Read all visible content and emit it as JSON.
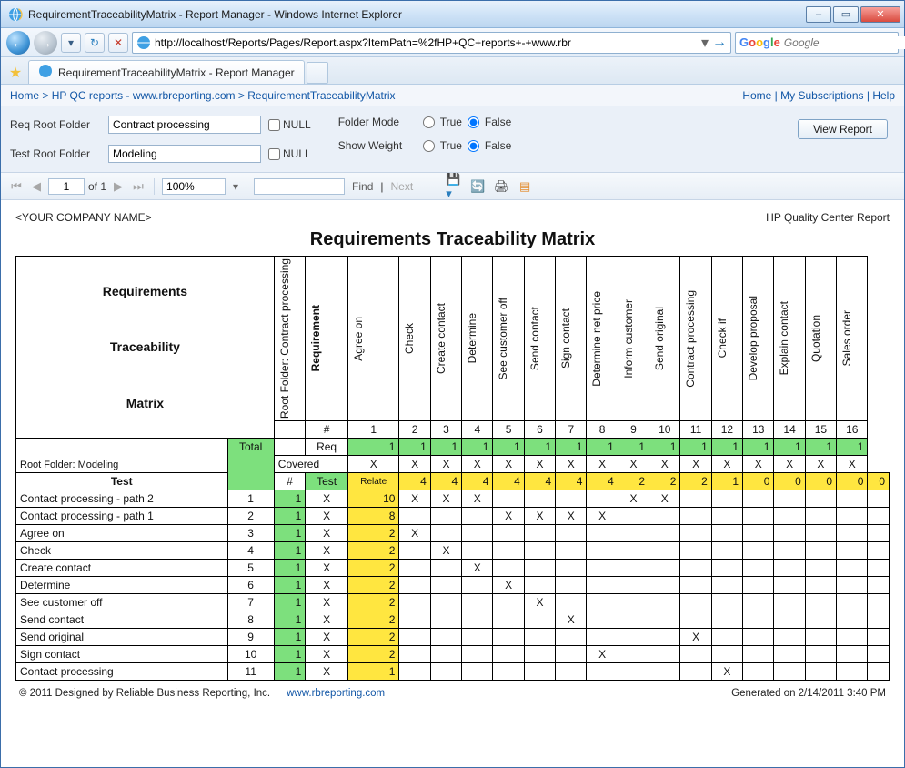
{
  "window": {
    "title": "RequirementTraceabilityMatrix - Report Manager - Windows Internet Explorer"
  },
  "nav": {
    "url": "http://localhost/Reports/Pages/Report.aspx?ItemPath=%2fHP+QC+reports+-+www.rbr",
    "search_placeholder": "Google"
  },
  "tab": {
    "title": "RequirementTraceabilityMatrix - Report Manager"
  },
  "breadcrumb": {
    "links": [
      "Home",
      "HP QC reports - www.rbreporting.com",
      "RequirementTraceabilityMatrix"
    ],
    "rhs": [
      "Home",
      "My Subscriptions",
      "Help"
    ]
  },
  "params": {
    "req_root_label": "Req Root Folder",
    "req_root_value": "Contract processing",
    "test_root_label": "Test Root Folder",
    "test_root_value": "Modeling",
    "null_label": "NULL",
    "folder_mode_label": "Folder Mode",
    "show_weight_label": "Show Weight",
    "true_label": "True",
    "false_label": "False",
    "folder_mode": "False",
    "show_weight": "False",
    "view_btn": "View Report"
  },
  "toolbar": {
    "page": "1",
    "page_total": "of 1",
    "zoom": "100%",
    "find": "Find",
    "next": "Next"
  },
  "report": {
    "company": "<YOUR COMPANY NAME>",
    "src": "HP Quality Center Report",
    "title": "Requirements Traceability Matrix",
    "rtm_label_lines": [
      "Requirements",
      "Traceability",
      "Matrix"
    ],
    "root_req": "Root Folder: Contract processing",
    "root_test": "Root Folder: Modeling",
    "req_cols": [
      "Requirement",
      "Agree on",
      "Check",
      "Create contact",
      "Determine",
      "See customer off",
      "Send contact",
      "Sign contact",
      "Determine net price",
      "Inform customer",
      "Send original",
      "Contract processing",
      "Check if",
      "Develop proposal",
      "Explain contact",
      "Quotation",
      "Sales order"
    ],
    "col_nums": [
      "#",
      "1",
      "2",
      "3",
      "4",
      "5",
      "6",
      "7",
      "8",
      "9",
      "10",
      "11",
      "12",
      "13",
      "14",
      "15",
      "16"
    ],
    "total_label": "Total",
    "req_row_label": "Req",
    "req_row": [
      1,
      1,
      1,
      1,
      1,
      1,
      1,
      1,
      1,
      1,
      1,
      1,
      1,
      1,
      1,
      1
    ],
    "covered_label": "Covered",
    "covered_row": [
      "X",
      "X",
      "X",
      "X",
      "X",
      "X",
      "X",
      "X",
      "X",
      "X",
      "X",
      "X",
      "X",
      "X",
      "X",
      "X"
    ],
    "test_hdr": "Test",
    "hash": "#",
    "test_label": "Test",
    "relate_label": "Relate",
    "relate_row": [
      4,
      4,
      4,
      4,
      4,
      4,
      4,
      2,
      2,
      2,
      1,
      0,
      0,
      0,
      0,
      0
    ],
    "tests": [
      {
        "name": "Contact processing - path 2",
        "num": 1,
        "total": 1,
        "cov": "X",
        "rel": 10,
        "marks": [
          "X",
          "X",
          "X",
          "",
          "",
          "",
          "",
          "X",
          "X",
          "",
          "",
          "",
          "",
          "",
          "",
          ""
        ]
      },
      {
        "name": "Contact processing - path 1",
        "num": 2,
        "total": 1,
        "cov": "X",
        "rel": 8,
        "marks": [
          "",
          "",
          "",
          "X",
          "X",
          "X",
          "X",
          "",
          "",
          "",
          "",
          "",
          "",
          "",
          "",
          ""
        ]
      },
      {
        "name": "Agree on",
        "num": 3,
        "total": 1,
        "cov": "X",
        "rel": 2,
        "marks": [
          "X",
          "",
          "",
          "",
          "",
          "",
          "",
          "",
          "",
          "",
          "",
          "",
          "",
          "",
          "",
          ""
        ]
      },
      {
        "name": "Check",
        "num": 4,
        "total": 1,
        "cov": "X",
        "rel": 2,
        "marks": [
          "",
          "X",
          "",
          "",
          "",
          "",
          "",
          "",
          "",
          "",
          "",
          "",
          "",
          "",
          "",
          ""
        ]
      },
      {
        "name": "Create contact",
        "num": 5,
        "total": 1,
        "cov": "X",
        "rel": 2,
        "marks": [
          "",
          "",
          "X",
          "",
          "",
          "",
          "",
          "",
          "",
          "",
          "",
          "",
          "",
          "",
          "",
          ""
        ]
      },
      {
        "name": "Determine",
        "num": 6,
        "total": 1,
        "cov": "X",
        "rel": 2,
        "marks": [
          "",
          "",
          "",
          "X",
          "",
          "",
          "",
          "",
          "",
          "",
          "",
          "",
          "",
          "",
          "",
          ""
        ]
      },
      {
        "name": "See customer off",
        "num": 7,
        "total": 1,
        "cov": "X",
        "rel": 2,
        "marks": [
          "",
          "",
          "",
          "",
          "X",
          "",
          "",
          "",
          "",
          "",
          "",
          "",
          "",
          "",
          "",
          ""
        ]
      },
      {
        "name": "Send contact",
        "num": 8,
        "total": 1,
        "cov": "X",
        "rel": 2,
        "marks": [
          "",
          "",
          "",
          "",
          "",
          "X",
          "",
          "",
          "",
          "",
          "",
          "",
          "",
          "",
          "",
          ""
        ]
      },
      {
        "name": "Send original",
        "num": 9,
        "total": 1,
        "cov": "X",
        "rel": 2,
        "marks": [
          "",
          "",
          "",
          "",
          "",
          "",
          "",
          "",
          "",
          "X",
          "",
          "",
          "",
          "",
          "",
          ""
        ]
      },
      {
        "name": "Sign contact",
        "num": 10,
        "total": 1,
        "cov": "X",
        "rel": 2,
        "marks": [
          "",
          "",
          "",
          "",
          "",
          "",
          "X",
          "",
          "",
          "",
          "",
          "",
          "",
          "",
          "",
          ""
        ]
      },
      {
        "name": "Contact processing",
        "num": 11,
        "total": 1,
        "cov": "X",
        "rel": 1,
        "marks": [
          "",
          "",
          "",
          "",
          "",
          "",
          "",
          "",
          "",
          "",
          "X",
          "",
          "",
          "",
          "",
          ""
        ]
      }
    ],
    "footer_copy": "© 2011 Designed by Reliable Business Reporting, Inc.",
    "footer_url": "www.rbreporting.com",
    "generated": "Generated on 2/14/2011 3:40 PM"
  },
  "colors": {
    "green": "#7de07d",
    "yellow": "#ffe640"
  }
}
